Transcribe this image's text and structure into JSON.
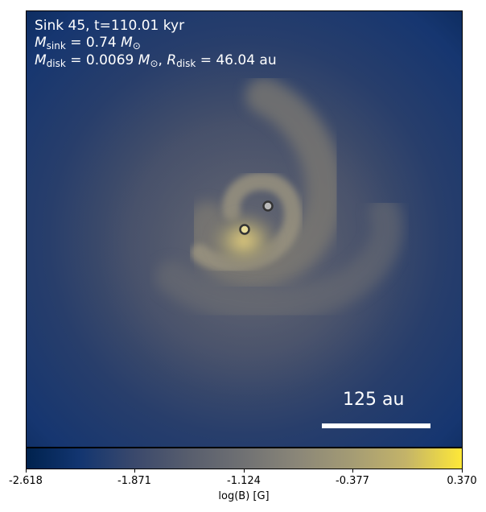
{
  "annotation": {
    "line1": "Sink 45, t=110.01 kyr",
    "msink_symbol": "M",
    "msink_sub": "sink",
    "msink_value": " = 0.74 ",
    "mdisk_symbol": "M",
    "mdisk_sub": "disk",
    "mdisk_value": " = 0.0069 ",
    "sep": ", ",
    "rdisk_symbol": "R",
    "rdisk_sub": "disk",
    "rdisk_value": " = 46.04 au",
    "msun": "M",
    "msun_sub": "⊙"
  },
  "scale_bar": {
    "label": "125 au"
  },
  "colorbar": {
    "label": "log(B) [G]",
    "ticks": [
      "-2.618",
      "-1.871",
      "-1.124",
      "-0.377",
      "0.370"
    ],
    "colormap": "cividis",
    "range": [
      -2.618,
      0.37
    ]
  },
  "sinks": [
    {
      "name": "primary",
      "fill": "#e9dd9a"
    },
    {
      "name": "secondary",
      "fill": "#b9b9b9"
    }
  ]
}
